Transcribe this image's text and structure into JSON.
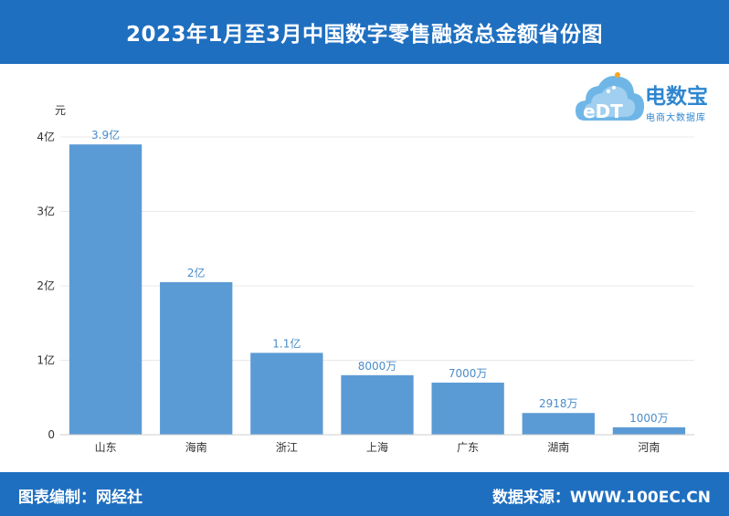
{
  "header": {
    "title": "2023年1月至3月中国数字零售融资总金额省份图"
  },
  "logo": {
    "name": "电数宝",
    "subtitle": "电商大数据库",
    "mark_text": "eDT"
  },
  "footer": {
    "left": "图表编制：网经社",
    "right": "数据来源：WWW.100EC.CN"
  },
  "colors": {
    "header_bg": "#1f6fc0",
    "bar": "#5b9bd5",
    "value_label": "#4a8dc9"
  },
  "chart_data": {
    "type": "bar",
    "ylabel": "元",
    "ylim": [
      0,
      400000000
    ],
    "yticks": [
      {
        "value": 0,
        "label": "0"
      },
      {
        "value": 100000000,
        "label": "1亿"
      },
      {
        "value": 200000000,
        "label": "2亿"
      },
      {
        "value": 300000000,
        "label": "3亿"
      },
      {
        "value": 400000000,
        "label": "4亿"
      }
    ],
    "categories": [
      "山东",
      "海南",
      "浙江",
      "上海",
      "广东",
      "湖南",
      "河南"
    ],
    "values": [
      390000000,
      205000000,
      110000000,
      80000000,
      70000000,
      29180000,
      10000000
    ],
    "value_labels": [
      "3.9亿",
      "2亿",
      "1.1亿",
      "8000万",
      "7000万",
      "2918万",
      "1000万"
    ],
    "grid": true,
    "legend": "none"
  }
}
